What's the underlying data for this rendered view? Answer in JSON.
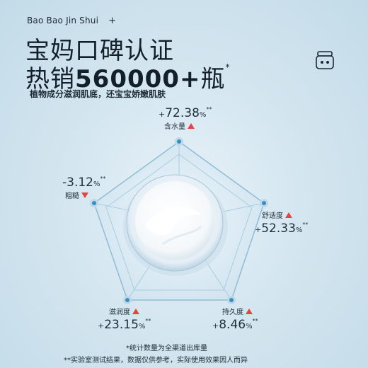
{
  "brand": {
    "name": "Bao Bao Jin Shui",
    "plus": "+"
  },
  "headline": {
    "line1": "宝妈口碑认证",
    "line2_prefix": "热销",
    "line2_number": "560000+",
    "line2_suffix": "瓶",
    "line2_mark": "*"
  },
  "tagline": "植物成分滋润肌底，还宝宝娇嫩肌肤",
  "metrics": {
    "moisture": {
      "sign": "+",
      "value": "72.38",
      "unit": "%",
      "mark": "**",
      "label": "含水量",
      "direction": "up"
    },
    "comfort": {
      "sign": "+",
      "value": "52.33",
      "unit": "%",
      "mark": "**",
      "label": "舒适度",
      "direction": "up"
    },
    "lasting": {
      "sign": "+",
      "value": "8.46",
      "unit": "%",
      "mark": "**",
      "label": "持久度",
      "direction": "up"
    },
    "nourish": {
      "sign": "+",
      "value": "23.15",
      "unit": "%",
      "mark": "**",
      "label": "滋润度",
      "direction": "up"
    },
    "rough": {
      "sign": "-",
      "value": "3.12",
      "unit": "%",
      "mark": "**",
      "label": "粗糙",
      "direction": "down"
    }
  },
  "footnotes": {
    "note1": "*统计数量为全渠道出库量",
    "note2": "**实验室测试结果，数据仅供参考，实际使用效果因人而异"
  },
  "colors": {
    "accent_red": "#e8443e",
    "node_blue": "#3b8ec0",
    "pentagon_edge": "#6fa8c9"
  }
}
